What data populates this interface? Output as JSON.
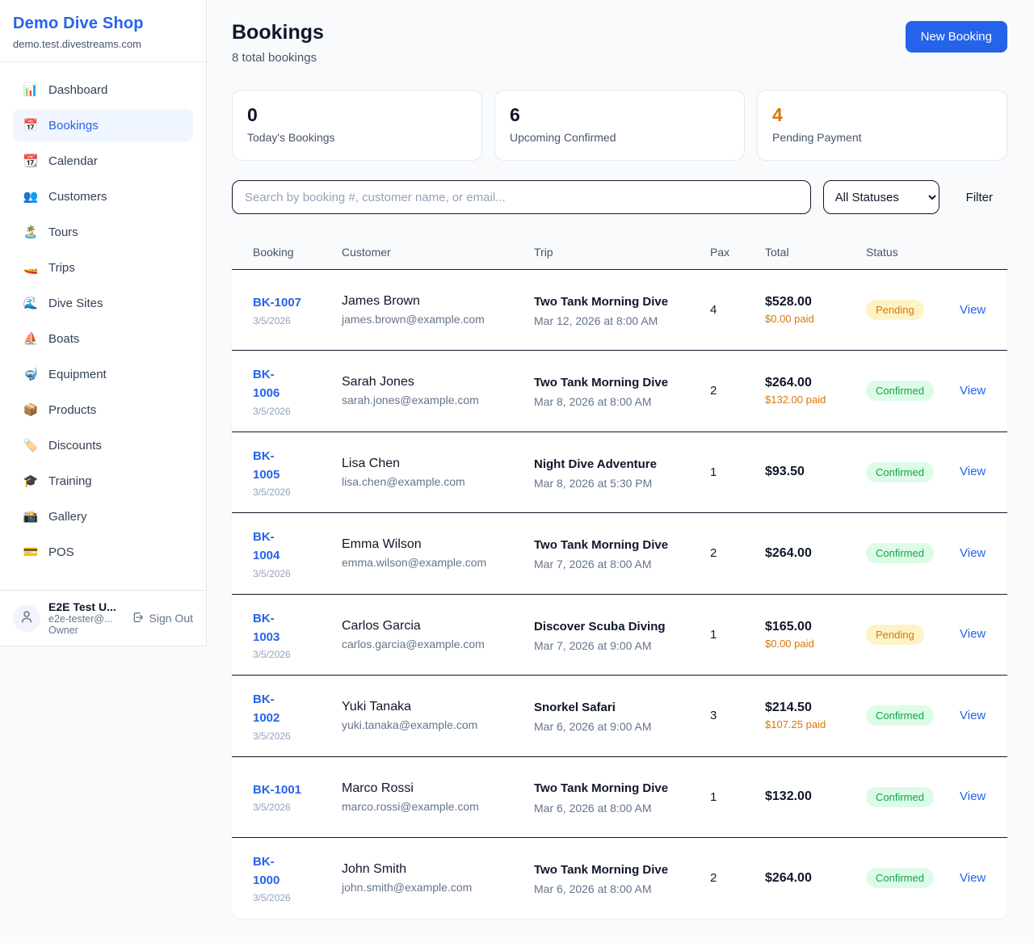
{
  "colors": {
    "brand_blue": "#2563eb",
    "accent_orange": "#d97706",
    "pending_bg": "#fef3c7",
    "pending_text": "#d97706",
    "confirmed_bg": "#dcfce7",
    "confirmed_text": "#16a34a",
    "page_bg": "#f8fafc",
    "dark_text": "#0f172a"
  },
  "sidebar": {
    "title": "Demo Dive Shop",
    "domain": "demo.test.divestreams.com",
    "items": [
      {
        "label": "Dashboard",
        "icon": "bar-chart-icon",
        "emoji": "📊",
        "active": false
      },
      {
        "label": "Bookings",
        "icon": "calendar-icon",
        "emoji": "📅",
        "active": true
      },
      {
        "label": "Calendar",
        "icon": "tear-calendar-icon",
        "emoji": "📆",
        "active": false
      },
      {
        "label": "Customers",
        "icon": "people-icon",
        "emoji": "👥",
        "active": false
      },
      {
        "label": "Tours",
        "icon": "island-icon",
        "emoji": "🏝️",
        "active": false
      },
      {
        "label": "Trips",
        "icon": "speedboat-icon",
        "emoji": "🚤",
        "active": false
      },
      {
        "label": "Dive Sites",
        "icon": "wave-icon",
        "emoji": "🌊",
        "active": false
      },
      {
        "label": "Boats",
        "icon": "sailboat-icon",
        "emoji": "⛵",
        "active": false
      },
      {
        "label": "Equipment",
        "icon": "diving-mask-icon",
        "emoji": "🤿",
        "active": false
      },
      {
        "label": "Products",
        "icon": "package-icon",
        "emoji": "📦",
        "active": false
      },
      {
        "label": "Discounts",
        "icon": "tag-icon",
        "emoji": "🏷️",
        "active": false
      },
      {
        "label": "Training",
        "icon": "graduation-cap-icon",
        "emoji": "🎓",
        "active": false
      },
      {
        "label": "Gallery",
        "icon": "camera-icon",
        "emoji": "📸",
        "active": false
      },
      {
        "label": "POS",
        "icon": "credit-card-icon",
        "emoji": "💳",
        "active": false
      }
    ],
    "user": {
      "name": "E2E Test U...",
      "email": "e2e-tester@...",
      "role": "Owner",
      "sign_out_label": "Sign Out"
    }
  },
  "header": {
    "title": "Bookings",
    "subtitle": "8 total bookings",
    "new_booking_label": "New Booking"
  },
  "stats": [
    {
      "value": "0",
      "label": "Today's Bookings",
      "accent": false
    },
    {
      "value": "6",
      "label": "Upcoming Confirmed",
      "accent": false
    },
    {
      "value": "4",
      "label": "Pending Payment",
      "accent": true
    }
  ],
  "filters": {
    "search_placeholder": "Search by booking #, customer name, or email...",
    "status_selected": "All Statuses",
    "filter_label": "Filter"
  },
  "table": {
    "columns": [
      "Booking",
      "Customer",
      "Trip",
      "Pax",
      "Total",
      "Status"
    ],
    "view_label": "View",
    "rows": [
      {
        "number": "BK-1007",
        "number_wrapped": false,
        "date": "3/5/2026",
        "customer_name": "James Brown",
        "customer_email": "james.brown@example.com",
        "trip_name": "Two Tank Morning Dive",
        "trip_datetime": "Mar 12, 2026 at 8:00 AM",
        "pax": "4",
        "total": "$528.00",
        "paid": "$0.00 paid",
        "status": "Pending"
      },
      {
        "number": "BK-1006",
        "number_wrapped": true,
        "date": "3/5/2026",
        "customer_name": "Sarah Jones",
        "customer_email": "sarah.jones@example.com",
        "trip_name": "Two Tank Morning Dive",
        "trip_datetime": "Mar 8, 2026 at 8:00 AM",
        "pax": "2",
        "total": "$264.00",
        "paid": "$132.00 paid",
        "status": "Confirmed"
      },
      {
        "number": "BK-1005",
        "number_wrapped": true,
        "date": "3/5/2026",
        "customer_name": "Lisa Chen",
        "customer_email": "lisa.chen@example.com",
        "trip_name": "Night Dive Adventure",
        "trip_datetime": "Mar 8, 2026 at 5:30 PM",
        "pax": "1",
        "total": "$93.50",
        "paid": null,
        "status": "Confirmed"
      },
      {
        "number": "BK-1004",
        "number_wrapped": true,
        "date": "3/5/2026",
        "customer_name": "Emma Wilson",
        "customer_email": "emma.wilson@example.com",
        "trip_name": "Two Tank Morning Dive",
        "trip_datetime": "Mar 7, 2026 at 8:00 AM",
        "pax": "2",
        "total": "$264.00",
        "paid": null,
        "status": "Confirmed"
      },
      {
        "number": "BK-1003",
        "number_wrapped": true,
        "date": "3/5/2026",
        "customer_name": "Carlos Garcia",
        "customer_email": "carlos.garcia@example.com",
        "trip_name": "Discover Scuba Diving",
        "trip_datetime": "Mar 7, 2026 at 9:00 AM",
        "pax": "1",
        "total": "$165.00",
        "paid": "$0.00 paid",
        "status": "Pending"
      },
      {
        "number": "BK-1002",
        "number_wrapped": true,
        "date": "3/5/2026",
        "customer_name": "Yuki Tanaka",
        "customer_email": "yuki.tanaka@example.com",
        "trip_name": "Snorkel Safari",
        "trip_datetime": "Mar 6, 2026 at 9:00 AM",
        "pax": "3",
        "total": "$214.50",
        "paid": "$107.25 paid",
        "status": "Confirmed"
      },
      {
        "number": "BK-1001",
        "number_wrapped": false,
        "date": "3/5/2026",
        "customer_name": "Marco Rossi",
        "customer_email": "marco.rossi@example.com",
        "trip_name": "Two Tank Morning Dive",
        "trip_datetime": "Mar 6, 2026 at 8:00 AM",
        "pax": "1",
        "total": "$132.00",
        "paid": null,
        "status": "Confirmed"
      },
      {
        "number": "BK-1000",
        "number_wrapped": true,
        "date": "3/5/2026",
        "customer_name": "John Smith",
        "customer_email": "john.smith@example.com",
        "trip_name": "Two Tank Morning Dive",
        "trip_datetime": "Mar 6, 2026 at 8:00 AM",
        "pax": "2",
        "total": "$264.00",
        "paid": null,
        "status": "Confirmed"
      }
    ]
  }
}
